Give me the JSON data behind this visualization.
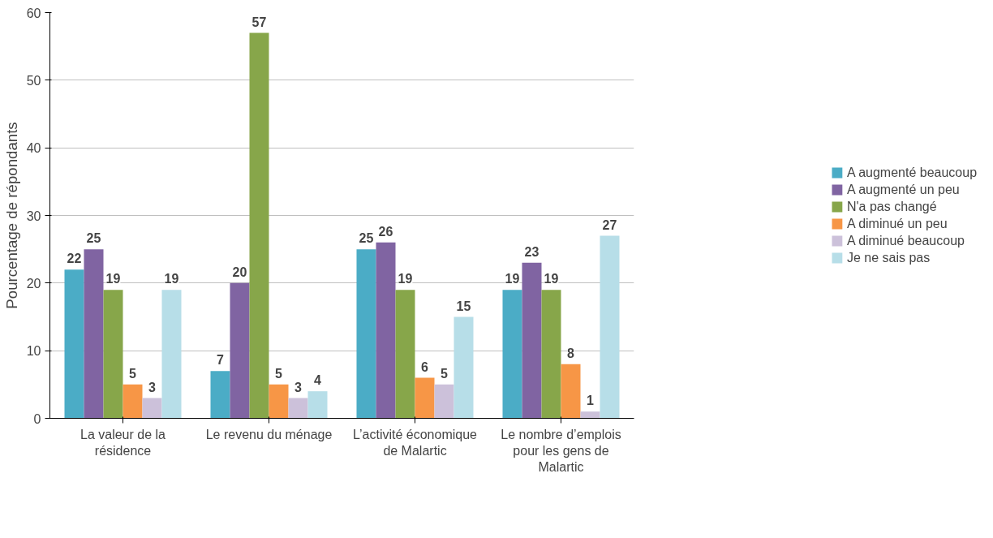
{
  "chart_data": {
    "type": "bar",
    "ylabel": "Pourcentage de répondants",
    "categories": [
      "La valeur de la résidence",
      "Le revenu du ménage",
      "L’activité économique de Malartic",
      "Le nombre d’emplois pour les gens de Malartic"
    ],
    "series": [
      {
        "name": "A augmenté beaucoup",
        "color": "#4bacc6",
        "values": [
          22,
          7,
          25,
          19
        ]
      },
      {
        "name": "A augmenté un peu",
        "color": "#8064a2",
        "values": [
          25,
          20,
          26,
          23
        ]
      },
      {
        "name": "N'a pas changé",
        "color": "#87a64a",
        "values": [
          19,
          57,
          19,
          19
        ]
      },
      {
        "name": "A diminué un peu",
        "color": "#f79646",
        "values": [
          5,
          5,
          6,
          8
        ]
      },
      {
        "name": "A diminué beaucoup",
        "color": "#ccc1da",
        "values": [
          3,
          3,
          5,
          1
        ]
      },
      {
        "name": "Je ne sais pas",
        "color": "#b7dee8",
        "values": [
          19,
          4,
          15,
          27
        ]
      }
    ],
    "ylim": [
      0,
      60
    ],
    "yticks": [
      0,
      10,
      20,
      30,
      40,
      50,
      60
    ],
    "grid": "y",
    "legend": "right",
    "data_labels": true
  }
}
